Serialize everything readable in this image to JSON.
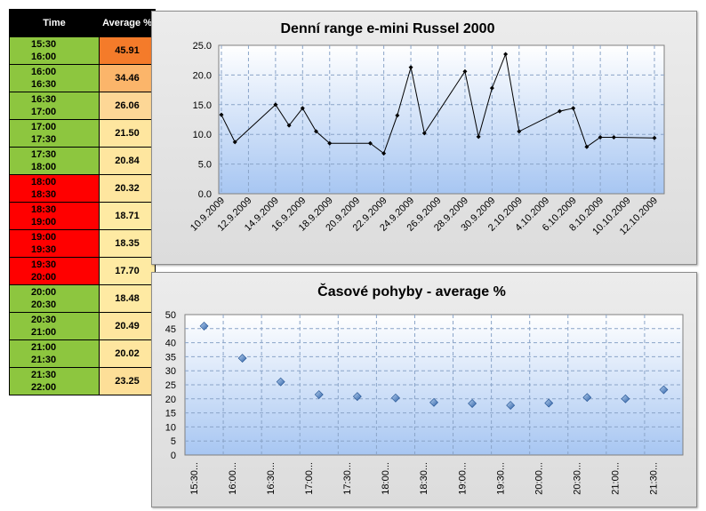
{
  "table": {
    "headers": {
      "time": "Time",
      "average": "Average %"
    },
    "rows": [
      {
        "start": "15:30",
        "end": "16:00",
        "avg": "45.91",
        "time_color": "#8dc63f",
        "avg_color": "#f47b2a"
      },
      {
        "start": "16:00",
        "end": "16:30",
        "avg": "34.46",
        "time_color": "#8dc63f",
        "avg_color": "#fbb56a"
      },
      {
        "start": "16:30",
        "end": "17:00",
        "avg": "26.06",
        "time_color": "#8dc63f",
        "avg_color": "#fdd796"
      },
      {
        "start": "17:00",
        "end": "17:30",
        "avg": "21.50",
        "time_color": "#8dc63f",
        "avg_color": "#fee69f"
      },
      {
        "start": "17:30",
        "end": "18:00",
        "avg": "20.84",
        "time_color": "#8dc63f",
        "avg_color": "#fee69f"
      },
      {
        "start": "18:00",
        "end": "18:30",
        "avg": "20.32",
        "time_color": "#ff0000",
        "avg_color": "#fee69f"
      },
      {
        "start": "18:30",
        "end": "19:00",
        "avg": "18.71",
        "time_color": "#ff0000",
        "avg_color": "#feeaa3"
      },
      {
        "start": "19:00",
        "end": "19:30",
        "avg": "18.35",
        "time_color": "#ff0000",
        "avg_color": "#feeaa3"
      },
      {
        "start": "19:30",
        "end": "20:00",
        "avg": "17.70",
        "time_color": "#ff0000",
        "avg_color": "#feeaa3"
      },
      {
        "start": "20:00",
        "end": "20:30",
        "avg": "18.48",
        "time_color": "#8dc63f",
        "avg_color": "#feeaa3"
      },
      {
        "start": "20:30",
        "end": "21:00",
        "avg": "20.49",
        "time_color": "#8dc63f",
        "avg_color": "#fee69f"
      },
      {
        "start": "21:00",
        "end": "21:30",
        "avg": "20.02",
        "time_color": "#8dc63f",
        "avg_color": "#fee69f"
      },
      {
        "start": "21:30",
        "end": "22:00",
        "avg": "23.25",
        "time_color": "#8dc63f",
        "avg_color": "#fddf98"
      }
    ]
  },
  "chart_data": [
    {
      "type": "line",
      "title": "Denní range e-mini Russel 2000",
      "xlabel": "",
      "ylabel": "",
      "ylim": [
        0,
        25
      ],
      "yticks": [
        "0.0",
        "5.0",
        "10.0",
        "15.0",
        "20.0",
        "25.0"
      ],
      "grid": true,
      "x_ticks": [
        "10.9.2009",
        "12.9.2009",
        "14.9.2009",
        "16.9.2009",
        "18.9.2009",
        "20.9.2009",
        "22.9.2009",
        "24.9.2009",
        "26.9.2009",
        "28.9.2009",
        "30.9.2009",
        "2.10.2009",
        "4.10.2009",
        "6.10.2009",
        "8.10.2009",
        "10.10.2009",
        "12.10.2009"
      ],
      "points": [
        {
          "day": 0,
          "value": 13.3
        },
        {
          "day": 1,
          "value": 8.7
        },
        {
          "day": 4,
          "value": 15.0
        },
        {
          "day": 5,
          "value": 11.5
        },
        {
          "day": 6,
          "value": 14.4
        },
        {
          "day": 7,
          "value": 10.5
        },
        {
          "day": 8,
          "value": 8.5
        },
        {
          "day": 11,
          "value": 8.5
        },
        {
          "day": 12,
          "value": 6.8
        },
        {
          "day": 13,
          "value": 13.2
        },
        {
          "day": 14,
          "value": 21.3
        },
        {
          "day": 15,
          "value": 10.2
        },
        {
          "day": 18,
          "value": 20.6
        },
        {
          "day": 19,
          "value": 9.6
        },
        {
          "day": 20,
          "value": 17.8
        },
        {
          "day": 21,
          "value": 23.5
        },
        {
          "day": 22,
          "value": 10.5
        },
        {
          "day": 25,
          "value": 13.9
        },
        {
          "day": 26,
          "value": 14.4
        },
        {
          "day": 27,
          "value": 7.9
        },
        {
          "day": 28,
          "value": 9.5
        },
        {
          "day": 29,
          "value": 9.5
        },
        {
          "day": 32,
          "value": 9.4
        }
      ]
    },
    {
      "type": "scatter",
      "title": "Časové pohyby - average %",
      "xlabel": "",
      "ylabel": "",
      "ylim": [
        0,
        50
      ],
      "yticks": [
        "0",
        "5",
        "10",
        "15",
        "20",
        "25",
        "30",
        "35",
        "40",
        "45",
        "50"
      ],
      "grid": true,
      "categories": [
        "15:30...",
        "16:00...",
        "16:30...",
        "17:00...",
        "17:30...",
        "18:00...",
        "18:30...",
        "19:00...",
        "19:30...",
        "20:00...",
        "20:30...",
        "21:00...",
        "21:30..."
      ],
      "values": [
        45.91,
        34.46,
        26.06,
        21.5,
        20.84,
        20.32,
        18.71,
        18.35,
        17.7,
        18.48,
        20.49,
        20.02,
        23.25
      ]
    }
  ]
}
